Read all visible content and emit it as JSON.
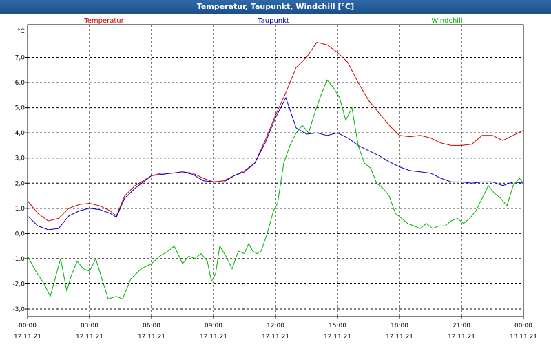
{
  "window": {
    "title": "Temperatur, Taupunkt, Windchill [°C]"
  },
  "chart_data": {
    "type": "line",
    "title": "Temperatur, Taupunkt, Windchill [°C]",
    "ylabel": "°C",
    "ylim": [
      -3.3,
      8.3
    ],
    "xlim": [
      0,
      24
    ],
    "yticks": [
      -3,
      -2,
      -1,
      0,
      1,
      2,
      3,
      4,
      5,
      6,
      7
    ],
    "ytick_labels": [
      "-3,0",
      "-2,0",
      "-1,0",
      "0,0",
      "1,0",
      "2,0",
      "3,0",
      "4,0",
      "5,0",
      "6,0",
      "7,0"
    ],
    "xticks": [
      0,
      3,
      6,
      9,
      12,
      15,
      18,
      21,
      24
    ],
    "xtick_times": [
      "00:00",
      "03:00",
      "06:00",
      "09:00",
      "12:00",
      "15:00",
      "18:00",
      "21:00",
      "00:00"
    ],
    "xtick_dates": [
      "12.11.21",
      "12.11.21",
      "12.11.21",
      "12.11.21",
      "12.11.21",
      "12.11.21",
      "12.11.21",
      "12.11.21",
      "13.11.21"
    ],
    "grid": true,
    "series": [
      {
        "name": "Temperatur",
        "color": "#d00000",
        "x": [
          0,
          0.5,
          1,
          1.5,
          2,
          2.5,
          3,
          3.5,
          4,
          4.3,
          4.7,
          5.2,
          6,
          6.5,
          7,
          7.5,
          8,
          8.5,
          9,
          9.5,
          10,
          10.5,
          11,
          11.5,
          12,
          12.5,
          13,
          13.5,
          14,
          14.5,
          15,
          15.5,
          16,
          16.5,
          17,
          17.5,
          18,
          18.5,
          19,
          19.5,
          20,
          20.5,
          21,
          21.5,
          22,
          22.5,
          23,
          23.5,
          24
        ],
        "values": [
          1.3,
          0.8,
          0.5,
          0.6,
          1.0,
          1.15,
          1.2,
          1.1,
          0.9,
          0.7,
          1.5,
          1.9,
          2.3,
          2.4,
          2.4,
          2.45,
          2.4,
          2.2,
          2.05,
          2.1,
          2.3,
          2.5,
          2.8,
          3.7,
          4.7,
          5.6,
          6.6,
          7.0,
          7.6,
          7.5,
          7.2,
          6.8,
          6.0,
          5.3,
          4.8,
          4.3,
          3.9,
          3.85,
          3.9,
          3.8,
          3.6,
          3.5,
          3.5,
          3.55,
          3.9,
          3.9,
          3.7,
          3.9,
          4.1
        ]
      },
      {
        "name": "Taupunkt",
        "color": "#0000c0",
        "x": [
          0,
          0.5,
          1,
          1.5,
          2,
          2.5,
          3,
          3.5,
          4,
          4.3,
          4.7,
          5.2,
          6,
          6.5,
          7,
          7.5,
          8,
          8.5,
          9,
          9.5,
          10,
          10.5,
          11,
          11.5,
          12,
          12.5,
          13,
          13.5,
          14,
          14.5,
          15,
          15.5,
          16,
          16.5,
          17,
          17.5,
          18,
          18.5,
          19,
          19.5,
          20,
          20.5,
          21,
          21.5,
          22,
          22.5,
          23,
          23.5,
          24
        ],
        "values": [
          0.7,
          0.3,
          0.15,
          0.2,
          0.7,
          0.9,
          1.0,
          0.95,
          0.8,
          0.65,
          1.4,
          1.8,
          2.3,
          2.35,
          2.4,
          2.45,
          2.35,
          2.1,
          2.05,
          2.05,
          2.3,
          2.45,
          2.8,
          3.6,
          4.6,
          5.4,
          4.2,
          3.95,
          4.0,
          3.9,
          4.0,
          3.8,
          3.5,
          3.3,
          3.1,
          2.85,
          2.65,
          2.5,
          2.45,
          2.4,
          2.2,
          2.05,
          2.05,
          2.0,
          2.05,
          2.05,
          1.9,
          2.05,
          2.0
        ]
      },
      {
        "name": "Windchill",
        "color": "#00b000",
        "x": [
          0,
          0.4,
          0.8,
          1.1,
          1.3,
          1.6,
          1.9,
          2.1,
          2.4,
          2.7,
          3.0,
          3.3,
          3.6,
          3.9,
          4.3,
          4.6,
          5.0,
          5.5,
          6.0,
          6.4,
          6.8,
          7.1,
          7.5,
          7.8,
          8.1,
          8.4,
          8.7,
          8.9,
          9.1,
          9.3,
          9.6,
          9.9,
          10.2,
          10.5,
          10.7,
          10.9,
          11.1,
          11.3,
          11.6,
          11.9,
          12.1,
          12.4,
          12.7,
          13.0,
          13.3,
          13.6,
          13.9,
          14.2,
          14.5,
          14.8,
          15.1,
          15.4,
          15.7,
          16.0,
          16.3,
          16.6,
          16.9,
          17.2,
          17.5,
          17.8,
          18.1,
          18.4,
          18.7,
          19.0,
          19.3,
          19.6,
          19.9,
          20.2,
          20.5,
          20.8,
          21.1,
          21.4,
          21.7,
          22.0,
          22.3,
          22.6,
          22.9,
          23.2,
          23.5,
          23.8,
          24
        ],
        "values": [
          -0.9,
          -1.5,
          -2.0,
          -2.5,
          -1.9,
          -1.0,
          -2.3,
          -1.7,
          -1.1,
          -1.4,
          -1.5,
          -1.0,
          -1.8,
          -2.6,
          -2.5,
          -2.6,
          -1.8,
          -1.4,
          -1.2,
          -0.9,
          -0.7,
          -0.5,
          -1.2,
          -0.9,
          -1.0,
          -0.8,
          -1.1,
          -1.9,
          -1.6,
          -0.5,
          -0.9,
          -1.4,
          -0.7,
          -0.8,
          -0.4,
          -0.7,
          -0.8,
          -0.7,
          0.0,
          0.9,
          1.2,
          2.8,
          3.5,
          4.0,
          4.3,
          4.0,
          4.8,
          5.5,
          6.1,
          5.8,
          5.4,
          4.5,
          5.0,
          3.5,
          2.8,
          2.6,
          2.0,
          1.8,
          1.5,
          0.8,
          0.6,
          0.4,
          0.3,
          0.2,
          0.4,
          0.2,
          0.3,
          0.3,
          0.5,
          0.6,
          0.4,
          0.6,
          0.9,
          1.4,
          1.9,
          1.6,
          1.4,
          1.1,
          1.9,
          2.2,
          2.0
        ]
      }
    ]
  }
}
